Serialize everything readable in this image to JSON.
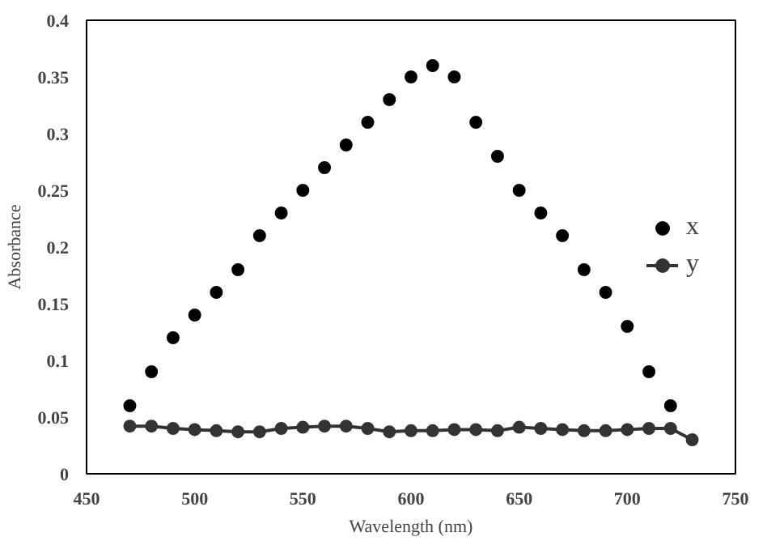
{
  "chart_data": {
    "type": "line",
    "xlabel": "Wavelength (nm)",
    "ylabel": "Absorbance",
    "xlim": [
      450,
      750
    ],
    "xticks": [
      450,
      500,
      550,
      600,
      650,
      700,
      750
    ],
    "ylim": [
      0,
      0.4
    ],
    "yticks": [
      0,
      0.05,
      0.1,
      0.15,
      0.2,
      0.25,
      0.3,
      0.35,
      0.4
    ],
    "grid": false,
    "legend": "right",
    "marker": "circle",
    "series": [
      {
        "name": "x",
        "type": "scatter",
        "color": "#000000",
        "x": [
          470,
          480,
          490,
          500,
          510,
          520,
          530,
          540,
          550,
          560,
          570,
          580,
          590,
          600,
          610,
          620,
          630,
          640,
          650,
          660,
          670,
          680,
          690,
          700,
          710,
          720
        ],
        "values": [
          0.06,
          0.09,
          0.12,
          0.14,
          0.16,
          0.18,
          0.21,
          0.23,
          0.25,
          0.27,
          0.29,
          0.31,
          0.33,
          0.35,
          0.36,
          0.35,
          0.31,
          0.28,
          0.25,
          0.23,
          0.21,
          0.18,
          0.16,
          0.13,
          0.09,
          0.06
        ]
      },
      {
        "name": "y",
        "color": "#333333",
        "x": [
          470,
          480,
          490,
          500,
          510,
          520,
          530,
          540,
          550,
          560,
          570,
          580,
          590,
          600,
          610,
          620,
          630,
          640,
          650,
          660,
          670,
          680,
          690,
          700,
          710,
          720,
          730
        ],
        "values": [
          0.042,
          0.042,
          0.04,
          0.039,
          0.038,
          0.037,
          0.037,
          0.04,
          0.041,
          0.042,
          0.042,
          0.04,
          0.037,
          0.038,
          0.038,
          0.039,
          0.039,
          0.038,
          0.041,
          0.04,
          0.039,
          0.038,
          0.038,
          0.039,
          0.04,
          0.04,
          0.03
        ]
      }
    ]
  }
}
